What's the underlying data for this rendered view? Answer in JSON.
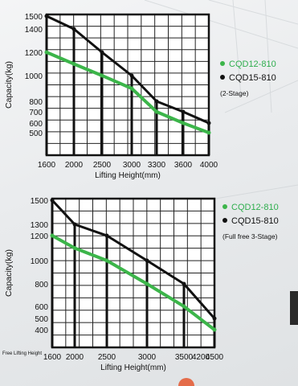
{
  "chart_data": [
    {
      "type": "line",
      "title": "",
      "xlabel": "Lifting Height(mm)",
      "ylabel": "Capacity(kg)",
      "x_ticks": [
        "1600",
        "2000",
        "2500",
        "3000",
        "3300",
        "3600",
        "4000"
      ],
      "y_ticks": [
        500,
        600,
        700,
        800,
        1000,
        1200,
        1400,
        1500
      ],
      "ylim": [
        400,
        1550
      ],
      "grid": true,
      "legend_note": "(2-Stage)",
      "series": [
        {
          "name": "CQD12-810",
          "color": "#3cb54a",
          "values": [
            1200,
            1100,
            1000,
            900,
            700,
            600,
            500
          ]
        },
        {
          "name": "CQD15-810",
          "color": "#111111",
          "values": [
            1500,
            1400,
            1200,
            1000,
            800,
            700,
            600
          ]
        }
      ]
    },
    {
      "type": "line",
      "title": "",
      "xlabel": "Lifting Height(mm)",
      "ylabel": "Capacity(kg)",
      "x_ticks": [
        "1600",
        "2000",
        "2500",
        "3000",
        "3500",
        "4200",
        "4500"
      ],
      "y_ticks": [
        400,
        500,
        600,
        800,
        1000,
        1200,
        1300,
        1500
      ],
      "ylim": [
        350,
        1550
      ],
      "grid": true,
      "x_extra_label": "Free Lifting Height",
      "legend_note": "(Full free 3-Stage)",
      "series": [
        {
          "name": "CQD12-810",
          "color": "#3cb54a",
          "values": [
            1200,
            1100,
            1000,
            800,
            600,
            400
          ]
        },
        {
          "name": "CQD15-810",
          "color": "#111111",
          "values": [
            1500,
            1300,
            1200,
            1000,
            800,
            500
          ]
        }
      ]
    }
  ]
}
